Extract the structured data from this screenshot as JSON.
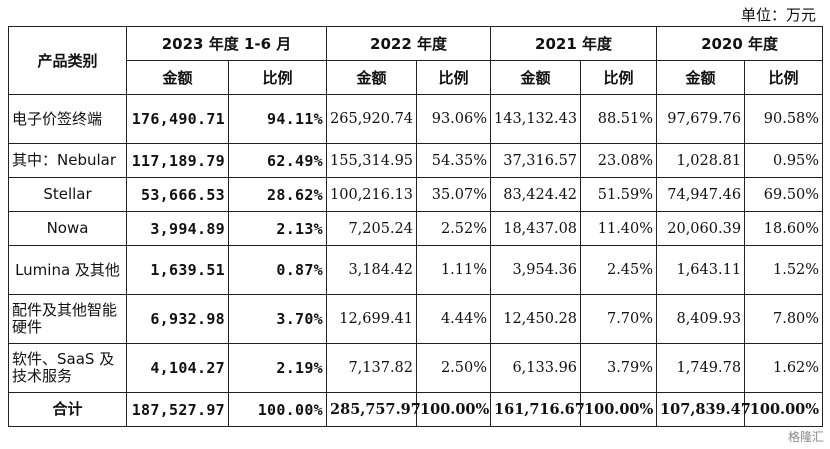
{
  "unit_label": "单位：万元",
  "headers": {
    "category": "产品类别",
    "periods": [
      "2023 年度 1-6 月",
      "2022 年度",
      "2021 年度",
      "2020 年度"
    ],
    "amount": "金额",
    "ratio": "比例"
  },
  "rows": [
    {
      "category": "电子价签终端",
      "values": [
        "176,490.71",
        "94.11%",
        "265,920.74",
        "93.06%",
        "143,132.43",
        "88.51%",
        "97,679.76",
        "90.58%"
      ]
    },
    {
      "category": "其中：Nebular",
      "values": [
        "117,189.79",
        "62.49%",
        "155,314.95",
        "54.35%",
        "37,316.57",
        "23.08%",
        "1,028.81",
        "0.95%"
      ]
    },
    {
      "category": "Stellar",
      "values": [
        "53,666.53",
        "28.62%",
        "100,216.13",
        "35.07%",
        "83,424.42",
        "51.59%",
        "74,947.46",
        "69.50%"
      ]
    },
    {
      "category": "Nowa",
      "values": [
        "3,994.89",
        "2.13%",
        "7,205.24",
        "2.52%",
        "18,437.08",
        "11.40%",
        "20,060.39",
        "18.60%"
      ]
    },
    {
      "category": "Lumina 及其他",
      "values": [
        "1,639.51",
        "0.87%",
        "3,184.42",
        "1.11%",
        "3,954.36",
        "2.45%",
        "1,643.11",
        "1.52%"
      ]
    },
    {
      "category": "配件及其他智能硬件",
      "values": [
        "6,932.98",
        "3.70%",
        "12,699.41",
        "4.44%",
        "12,450.28",
        "7.70%",
        "8,409.93",
        "7.80%"
      ]
    },
    {
      "category": "软件、SaaS 及技术服务",
      "values": [
        "4,104.27",
        "2.19%",
        "7,137.82",
        "2.50%",
        "6,133.96",
        "3.79%",
        "1,749.78",
        "1.62%"
      ]
    }
  ],
  "total": {
    "category": "合计",
    "values": [
      "187,527.97",
      "100.00%",
      "285,757.97",
      "100.00%",
      "161,716.67",
      "100.00%",
      "107,839.47",
      "100.00%"
    ]
  },
  "watermark": "格隆汇"
}
